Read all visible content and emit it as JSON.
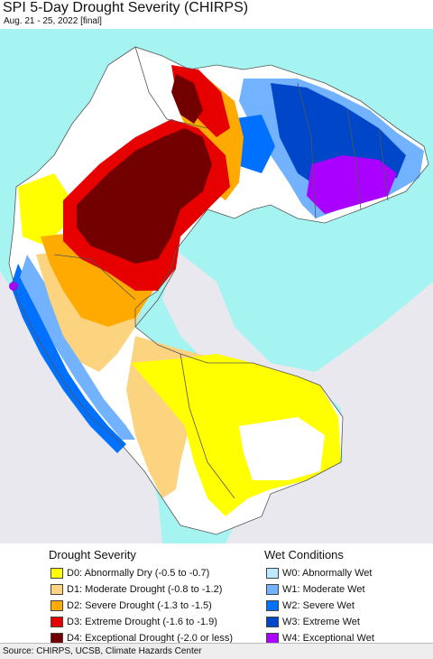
{
  "title": "SPI 5-Day Drought Severity (CHIRPS)",
  "subtitle": "Aug. 21 - 25, 2022 [final]",
  "legend": {
    "drought_title": "Drought Severity",
    "wet_title": "Wet Conditions",
    "drought": [
      {
        "label": "D0: Abnormally Dry (-0.5 to -0.7)",
        "color": "#ffff00"
      },
      {
        "label": "D1: Moderate Drought (-0.8 to -1.2)",
        "color": "#fcd37f"
      },
      {
        "label": "D2: Severe Drought (-1.3 to -1.5)",
        "color": "#ffaa00"
      },
      {
        "label": "D3: Extreme Drought (-1.6 to -1.9)",
        "color": "#e60000"
      },
      {
        "label": "D4: Exceptional Drought (-2.0 or less)",
        "color": "#730000"
      }
    ],
    "wet": [
      {
        "label": "W0: Abnormally Wet",
        "color": "#bee8ff"
      },
      {
        "label": "W1: Moderate Wet",
        "color": "#73b2ff"
      },
      {
        "label": "W2: Severe Wet",
        "color": "#0070ff"
      },
      {
        "label": "W3: Extreme Wet",
        "color": "#0046c8"
      },
      {
        "label": "W4: Exceptional Wet",
        "color": "#aa00ff"
      }
    ]
  },
  "map_colors": {
    "ocean": "#a6f4f2",
    "outside_region": "#e8e8ee",
    "no_drought": "#ffffff",
    "borders": "#555555"
  },
  "source": "Source: CHIRPS, UCSB, Climate Hazards Center"
}
